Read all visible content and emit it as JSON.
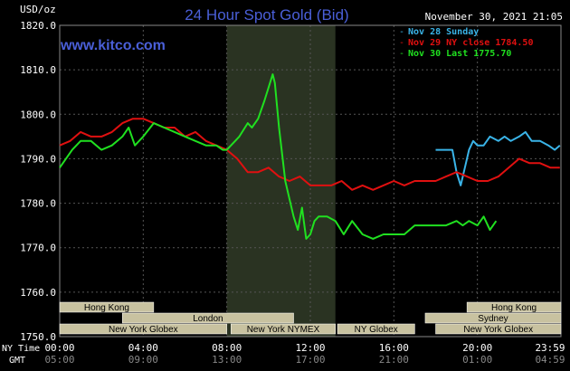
{
  "header": {
    "title": "24 Hour Spot Gold (Bid)",
    "currency": "USD/oz",
    "timestamp": "November 30, 2021 21:05",
    "site": "www.kitco.com"
  },
  "colors": {
    "background": "#000000",
    "grid": "#555555",
    "title": "#4a5fd8",
    "site": "#4a5fd8",
    "nov28": "#3ab4e8",
    "nov29": "#e01010",
    "nov30": "#20e020",
    "session_box_fill": "#c8c2a0",
    "session_box_text": "#000000",
    "highlight": "#2a3322"
  },
  "chart_data": {
    "type": "line",
    "title": "24 Hour Spot Gold (Bid)",
    "ylabel": "USD/oz",
    "ylim": [
      1750,
      1820
    ],
    "y_ticks": [
      "1820.0",
      "1810.0",
      "1800.0",
      "1790.0",
      "1780.0",
      "1770.0",
      "1760.0",
      "1750.0"
    ],
    "x_ticks_ny": [
      "00:00",
      "04:00",
      "08:00",
      "12:00",
      "16:00",
      "20:00",
      "23:59"
    ],
    "x_ticks_gmt": [
      "05:00",
      "09:00",
      "13:00",
      "17:00",
      "21:00",
      "01:00",
      "04:59"
    ],
    "x_label_ny": "NY Time",
    "x_label_gmt": "GMT",
    "grid": true,
    "legend_position": "top-right",
    "shaded_session_hours": [
      8.0,
      13.2
    ],
    "series": [
      {
        "name": "Nov 28 Sunday",
        "color": "#3ab4e8",
        "x": [
          18.0,
          18.8,
          19.0,
          19.2,
          19.4,
          19.6,
          19.8,
          20.0,
          20.3,
          20.6,
          21.0,
          21.3,
          21.6,
          22.0,
          22.3,
          22.6,
          23.0,
          23.4,
          23.7,
          23.95
        ],
        "y": [
          1792,
          1792,
          1787,
          1784,
          1788,
          1792,
          1794,
          1793,
          1793,
          1795,
          1794,
          1795,
          1794,
          1795,
          1796,
          1794,
          1794,
          1793,
          1792,
          1793
        ]
      },
      {
        "name": "Nov 29 NY close 1784.50",
        "color": "#e01010",
        "x": [
          0,
          0.5,
          1,
          1.5,
          2,
          2.5,
          3,
          3.5,
          4,
          4.5,
          5,
          5.5,
          6,
          6.5,
          7,
          7.5,
          8,
          8.5,
          9,
          9.5,
          10,
          10.5,
          11,
          11.5,
          12,
          12.5,
          13,
          13.5,
          14,
          14.5,
          15,
          15.5,
          16,
          16.5,
          17,
          17.5,
          18,
          18.5,
          19,
          19.5,
          20,
          20.5,
          21,
          21.5,
          22,
          22.5,
          23,
          23.5,
          23.95
        ],
        "y": [
          1793,
          1794,
          1796,
          1795,
          1795,
          1796,
          1798,
          1799,
          1799,
          1798,
          1797,
          1797,
          1795,
          1796,
          1794,
          1793,
          1792,
          1790,
          1787,
          1787,
          1788,
          1786,
          1785,
          1786,
          1784,
          1784,
          1784,
          1785,
          1783,
          1784,
          1783,
          1784,
          1785,
          1784,
          1785,
          1785,
          1785,
          1786,
          1787,
          1786,
          1785,
          1785,
          1786,
          1788,
          1790,
          1789,
          1789,
          1788,
          1788
        ]
      },
      {
        "name": "Nov 30 Last 1775.70",
        "color": "#20e020",
        "x": [
          0,
          0.3,
          0.6,
          1.0,
          1.5,
          2.0,
          2.5,
          3.0,
          3.3,
          3.6,
          4.0,
          4.5,
          5.0,
          5.5,
          6.0,
          6.5,
          7.0,
          7.5,
          7.8,
          8.0,
          8.2,
          8.6,
          9.0,
          9.2,
          9.5,
          9.8,
          10.0,
          10.2,
          10.3,
          10.5,
          10.8,
          11.0,
          11.2,
          11.4,
          11.6,
          11.8,
          12.0,
          12.2,
          12.4,
          12.8,
          13.2,
          13.6,
          14.0,
          14.5,
          15.0,
          15.5,
          16.0,
          16.5,
          17.0,
          17.5,
          18.0,
          18.5,
          19.0,
          19.3,
          19.6,
          20.0,
          20.3,
          20.6,
          20.9
        ],
        "y": [
          1788,
          1790,
          1792,
          1794,
          1794,
          1792,
          1793,
          1795,
          1797,
          1793,
          1795,
          1798,
          1797,
          1796,
          1795,
          1794,
          1793,
          1793,
          1792,
          1792,
          1793,
          1795,
          1798,
          1797,
          1799,
          1803,
          1806,
          1809,
          1807,
          1797,
          1785,
          1781,
          1777,
          1774,
          1779,
          1772,
          1773,
          1776,
          1777,
          1777,
          1776,
          1773,
          1776,
          1773,
          1772,
          1773,
          1773,
          1773,
          1775,
          1775,
          1775,
          1775,
          1776,
          1775,
          1776,
          1775,
          1777,
          1774,
          1776
        ]
      }
    ]
  },
  "sessions": [
    {
      "name": "Hong Kong",
      "start": 0.0,
      "end": 4.5,
      "row": 0
    },
    {
      "name": "London",
      "start": 3.0,
      "end": 11.2,
      "row": 1
    },
    {
      "name": "New York Globex",
      "start": 0.0,
      "end": 8.0,
      "row": 2
    },
    {
      "name": "New York NYMEX",
      "start": 8.2,
      "end": 13.2,
      "row": 2
    },
    {
      "name": "NY Globex",
      "start": 13.3,
      "end": 17.0,
      "row": 2
    },
    {
      "name": "Hong Kong",
      "start": 19.5,
      "end": 24.0,
      "row": 0
    },
    {
      "name": "Sydney",
      "start": 17.5,
      "end": 24.0,
      "row": 1
    },
    {
      "name": "New York Globex",
      "start": 18.0,
      "end": 24.0,
      "row": 2
    }
  ]
}
